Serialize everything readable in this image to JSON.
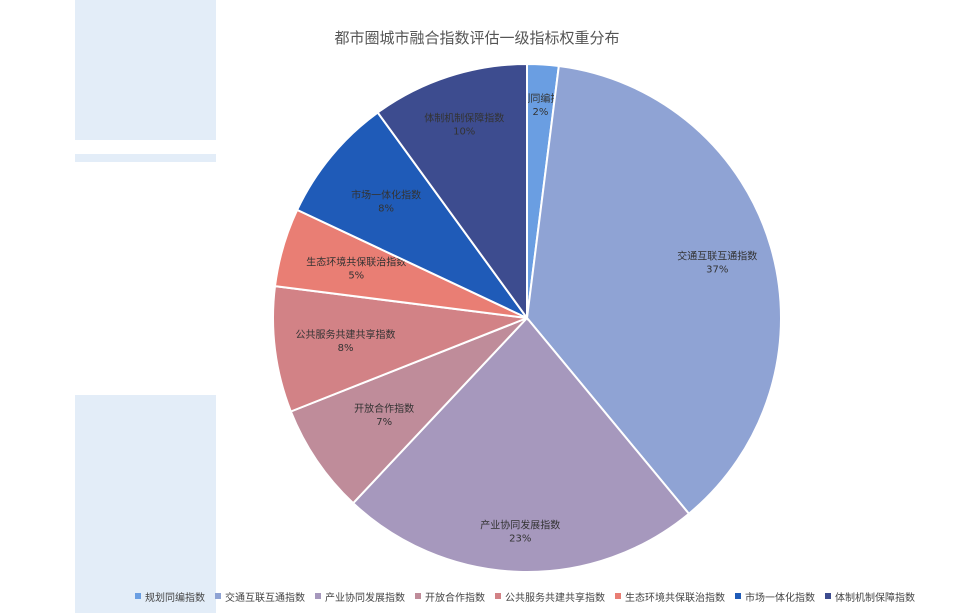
{
  "chart_data": {
    "type": "pie",
    "title": "都市圈城市融合指数评估一级指标权重分布",
    "legend_position": "bottom",
    "slices": [
      {
        "label": "规划同编指数",
        "value": 2,
        "value_label": "2%",
        "color": "#6a9ee2"
      },
      {
        "label": "交通互联互通指数",
        "value": 37,
        "value_label": "37%",
        "color": "#8fa3d4"
      },
      {
        "label": "产业协同发展指数",
        "value": 23,
        "value_label": "23%",
        "color": "#a698bd"
      },
      {
        "label": "开放合作指数",
        "value": 7,
        "value_label": "7%",
        "color": "#bf8c9a"
      },
      {
        "label": "公共服务共建共享指数",
        "value": 8,
        "value_label": "8%",
        "color": "#d28286"
      },
      {
        "label": "生态环境共保联治指数",
        "value": 5,
        "value_label": "5%",
        "color": "#e97e74"
      },
      {
        "label": "市场一体化指数",
        "value": 8,
        "value_label": "8%",
        "color": "#1f5bb8"
      },
      {
        "label": "体制机制保障指数",
        "value": 10,
        "value_label": "10%",
        "color": "#3d4c8f"
      }
    ]
  }
}
